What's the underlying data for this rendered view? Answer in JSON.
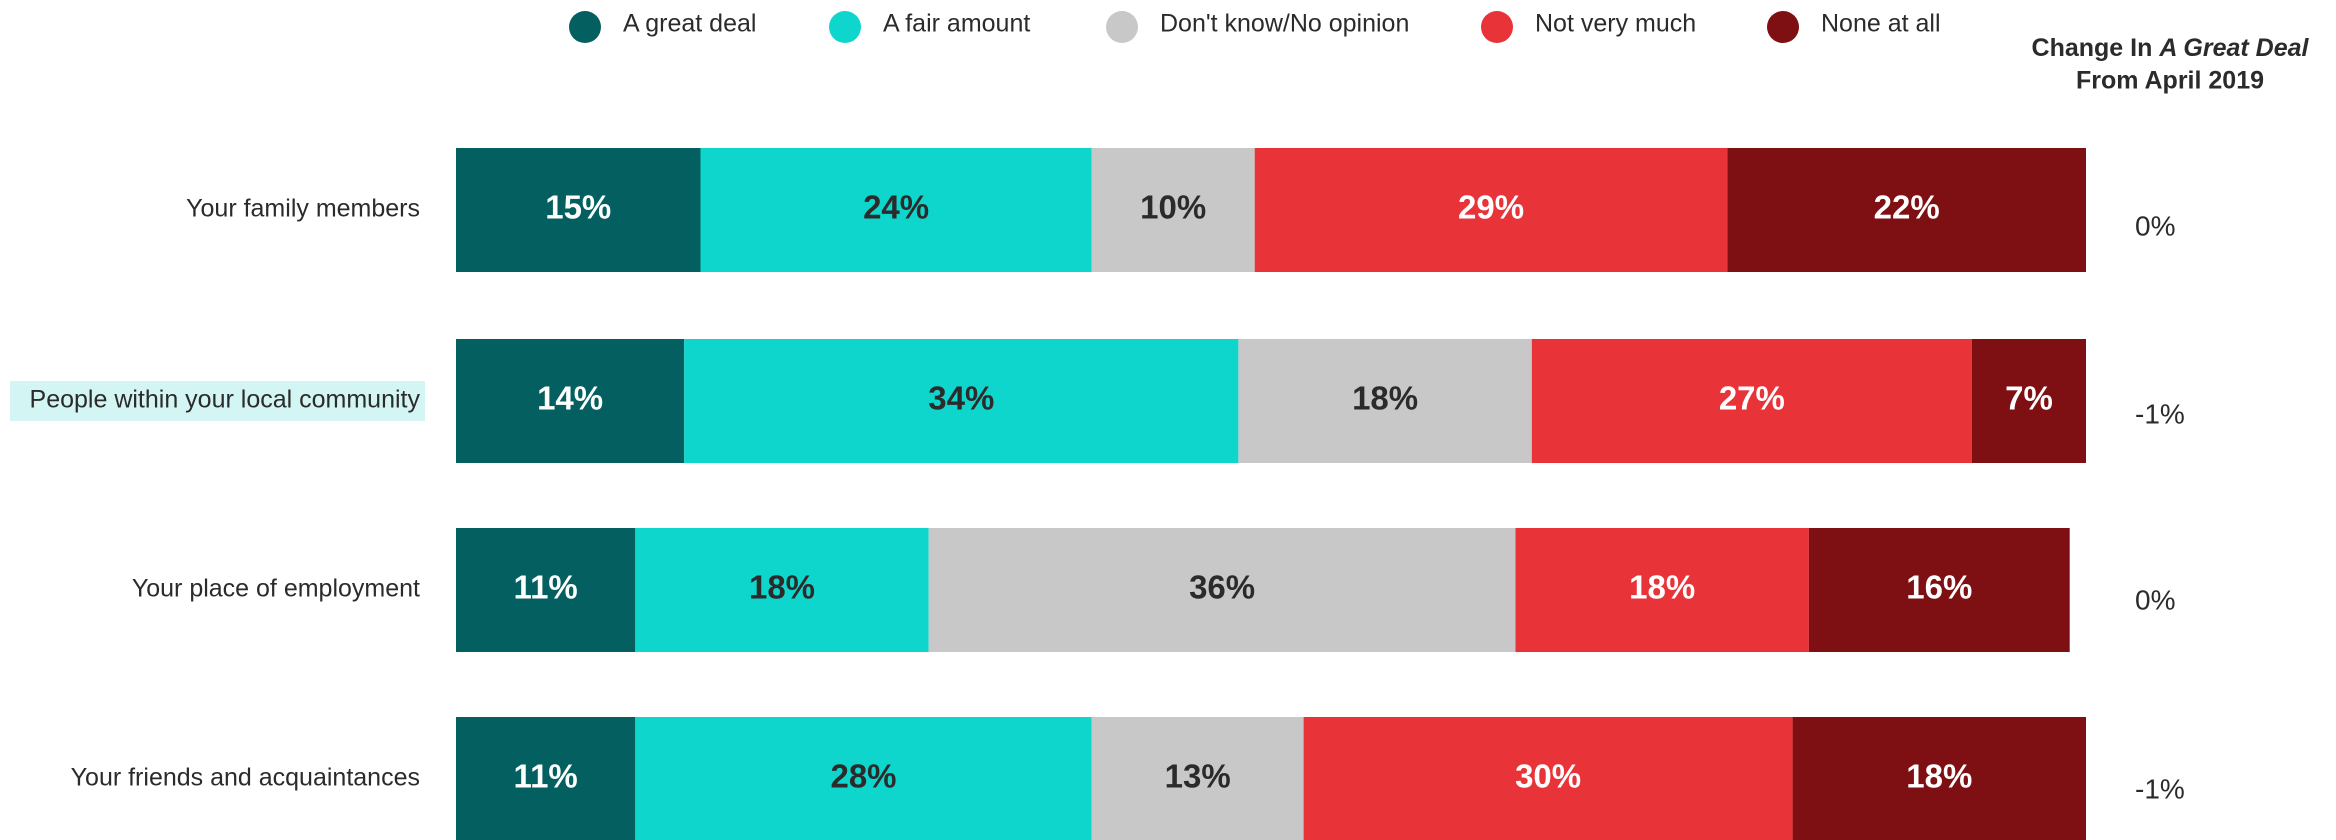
{
  "chart_data": {
    "type": "stacked_bar_horizontal",
    "categories": [
      "Your family members",
      "People within your local community",
      "Your place of employment",
      "Your friends and acquaintances"
    ],
    "highlighted_category": 1,
    "xlim": [
      0,
      100
    ],
    "legend": "top",
    "series": [
      {
        "name": "A great deal",
        "color": "#046060",
        "label_color": "#ffffff",
        "values": [
          15,
          14,
          11,
          11
        ],
        "value_labels": [
          "15%",
          "14%",
          "11%",
          "11%"
        ]
      },
      {
        "name": "A fair amount",
        "color": "#0fd6cc",
        "label_color": "#2b2b2b",
        "values": [
          24,
          34,
          18,
          28
        ],
        "value_labels": [
          "24%",
          "34%",
          "18%",
          "28%"
        ]
      },
      {
        "name": "Don't know/No opinion",
        "color": "#c8c8c8",
        "label_color": "#2b2b2b",
        "values": [
          10,
          18,
          36,
          13
        ],
        "value_labels": [
          "10%",
          "18%",
          "36%",
          "13%"
        ]
      },
      {
        "name": "Not very much",
        "color": "#e83338",
        "label_color": "#ffffff",
        "values": [
          29,
          27,
          18,
          30
        ],
        "value_labels": [
          "29%",
          "27%",
          "18%",
          "30%"
        ]
      },
      {
        "name": "None at all",
        "color": "#7e0f12",
        "label_color": "#ffffff",
        "values": [
          22,
          7,
          16,
          18
        ],
        "value_labels": [
          "22%",
          "7%",
          "16%",
          "18%"
        ]
      }
    ],
    "change_title": [
      "Change In",
      "A Great Deal",
      "From April 2019"
    ],
    "change": {
      "values": [
        0,
        -1,
        0,
        -1
      ],
      "value_labels": [
        "0%",
        "-1%",
        "0%",
        "-1%"
      ]
    }
  }
}
